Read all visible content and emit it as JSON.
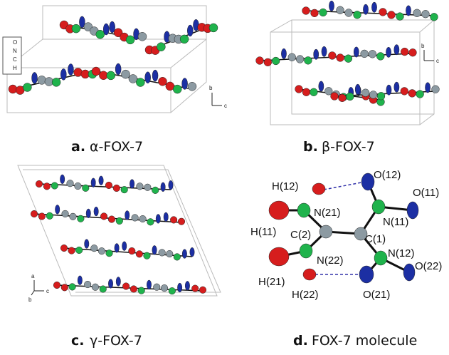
{
  "panels": [
    {
      "letter": "a.",
      "caption": "α-FOX-7",
      "axes": [
        "b",
        "c"
      ],
      "legend": [
        "O",
        "N",
        "C",
        "H"
      ]
    },
    {
      "letter": "b.",
      "caption": "β-FOX-7",
      "axes": [
        "b",
        "c"
      ]
    },
    {
      "letter": "c.",
      "caption": "γ-FOX-7",
      "axes": [
        "a",
        "b",
        "c"
      ]
    },
    {
      "letter": "d.",
      "caption": "FOX-7 molecule",
      "atoms": [
        "H(12)",
        "O(12)",
        "O(11)",
        "N(21)",
        "N(11)",
        "H(11)",
        "C(2)",
        "C(1)",
        "N(22)",
        "N(12)",
        "O(22)",
        "H(21)",
        "H(22)",
        "O(21)"
      ]
    }
  ]
}
